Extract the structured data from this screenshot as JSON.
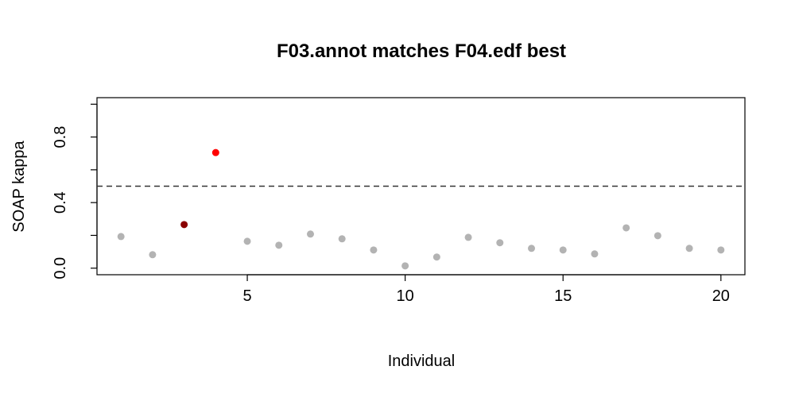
{
  "chart_data": {
    "type": "scatter",
    "title": "F03.annot matches F04.edf best",
    "xlabel": "Individual",
    "ylabel": "SOAP kappa",
    "xlim": [
      0.24,
      20.76
    ],
    "ylim": [
      -0.04,
      1.04
    ],
    "xticks": [
      5,
      10,
      15,
      20
    ],
    "xtick_labels": [
      "5",
      "10",
      "15",
      "20"
    ],
    "yticks": [
      0.0,
      0.2,
      0.4,
      0.6,
      0.8,
      1.0
    ],
    "ytick_labels": [
      "0.0",
      "",
      "0.4",
      "",
      "0.8",
      ""
    ],
    "grid": false,
    "reference_line": {
      "y": 0.5,
      "style": "dashed",
      "color": "#333333"
    },
    "x": [
      1,
      2,
      3,
      4,
      5,
      6,
      7,
      8,
      9,
      10,
      11,
      12,
      13,
      14,
      15,
      16,
      17,
      18,
      19,
      20
    ],
    "y": [
      0.193,
      0.082,
      0.266,
      0.705,
      0.164,
      0.14,
      0.208,
      0.179,
      0.111,
      0.014,
      0.068,
      0.188,
      0.155,
      0.121,
      0.111,
      0.087,
      0.246,
      0.198,
      0.121,
      0.111
    ],
    "colors": [
      "#b3b3b3",
      "#b3b3b3",
      "#8b0000",
      "#ff0000",
      "#b3b3b3",
      "#b3b3b3",
      "#b3b3b3",
      "#b3b3b3",
      "#b3b3b3",
      "#b3b3b3",
      "#b3b3b3",
      "#b3b3b3",
      "#b3b3b3",
      "#b3b3b3",
      "#b3b3b3",
      "#b3b3b3",
      "#b3b3b3",
      "#b3b3b3",
      "#b3b3b3",
      "#b3b3b3"
    ]
  }
}
